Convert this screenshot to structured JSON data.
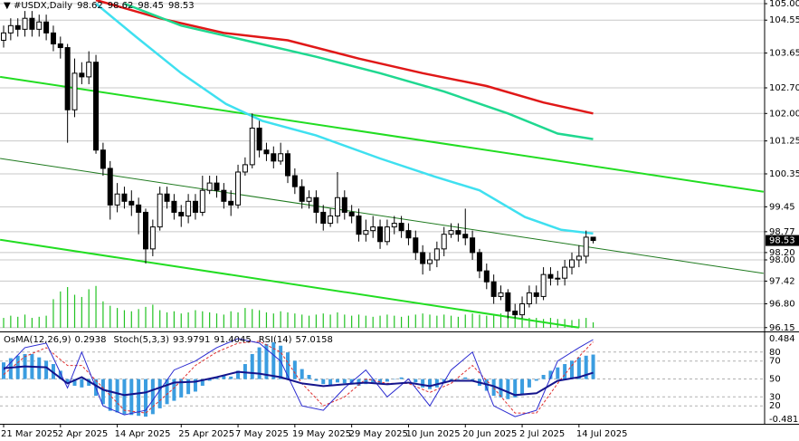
{
  "chart_data": [
    {
      "type": "candlestick",
      "symbol": "#USDX,Daily",
      "categories": [
        "21 Mar 2025",
        null,
        null,
        null,
        null,
        null,
        null,
        null,
        "2 Apr 2025",
        null,
        null,
        null,
        null,
        null,
        null,
        null,
        "14 Apr 2025",
        null,
        null,
        null,
        null,
        null,
        null,
        null,
        null,
        "25 Apr 2025",
        null,
        null,
        null,
        null,
        null,
        null,
        null,
        "7 May 2025",
        null,
        null,
        null,
        null,
        null,
        null,
        null,
        "19 May 2025",
        null,
        null,
        null,
        null,
        null,
        null,
        null,
        "29 May 2025",
        null,
        null,
        null,
        null,
        null,
        null,
        null,
        "10 Jun 2025",
        null,
        null,
        null,
        null,
        null,
        null,
        null,
        "20 Jun 2025",
        null,
        null,
        null,
        null,
        null,
        null,
        null,
        "2 Jul 2025",
        null,
        null,
        null,
        null,
        null,
        null,
        null,
        "14 Jul 2025",
        null,
        null
      ],
      "open": [
        104.0,
        104.2,
        104.4,
        104.3,
        104.6,
        104.3,
        104.5,
        104.2,
        103.9,
        103.8,
        102.1,
        103.1,
        103.0,
        103.4,
        101.0,
        100.5,
        99.5,
        99.8,
        99.6,
        99.5,
        99.3,
        98.3,
        98.9,
        99.8,
        99.6,
        99.3,
        99.2,
        99.6,
        99.3,
        99.9,
        100.1,
        99.9,
        99.6,
        99.5,
        100.4,
        100.6,
        101.6,
        101.0,
        100.9,
        100.7,
        100.9,
        100.3,
        100.0,
        99.6,
        99.7,
        99.3,
        99.0,
        99.2,
        99.7,
        99.3,
        99.2,
        98.7,
        98.8,
        98.9,
        98.5,
        98.9,
        99.0,
        98.8,
        98.6,
        98.2,
        97.9,
        98.0,
        98.3,
        98.7,
        98.8,
        98.7,
        98.6,
        98.2,
        97.7,
        97.4,
        97.0,
        97.1,
        96.6,
        96.5,
        96.8,
        97.1,
        97.0,
        97.6,
        97.5,
        97.5,
        97.8,
        98.0,
        98.1,
        98.62
      ],
      "high": [
        104.4,
        104.6,
        104.6,
        104.8,
        104.8,
        104.7,
        104.7,
        104.4,
        104.1,
        103.9,
        103.5,
        103.4,
        103.7,
        103.6,
        101.2,
        100.7,
        100.1,
        100.0,
        99.9,
        99.7,
        99.4,
        99.1,
        100.0,
        100.0,
        99.8,
        99.5,
        99.8,
        99.8,
        100.3,
        100.3,
        100.3,
        100.1,
        99.9,
        100.6,
        100.8,
        102.0,
        101.8,
        101.2,
        101.1,
        101.2,
        101.0,
        100.5,
        100.2,
        99.9,
        99.9,
        99.5,
        99.4,
        100.4,
        99.9,
        99.5,
        99.4,
        99.1,
        99.2,
        99.1,
        99.1,
        99.2,
        99.2,
        99.0,
        98.8,
        98.4,
        98.2,
        98.5,
        98.9,
        99.0,
        99.0,
        99.4,
        98.8,
        98.3,
        97.9,
        97.6,
        97.3,
        97.2,
        96.8,
        97.0,
        97.3,
        97.3,
        97.8,
        97.8,
        97.7,
        98.0,
        98.2,
        98.4,
        98.8,
        98.62
      ],
      "low": [
        103.8,
        104.0,
        104.1,
        104.1,
        104.1,
        104.1,
        104.0,
        103.7,
        103.5,
        101.2,
        101.9,
        102.8,
        102.8,
        100.9,
        100.3,
        99.1,
        99.3,
        99.4,
        99.2,
        98.7,
        97.9,
        98.1,
        98.8,
        99.4,
        99.1,
        98.9,
        99.0,
        99.1,
        99.2,
        99.8,
        99.7,
        99.4,
        99.2,
        99.4,
        100.3,
        100.5,
        100.8,
        100.7,
        100.5,
        100.6,
        100.1,
        99.8,
        99.4,
        99.4,
        99.0,
        98.8,
        98.9,
        99.0,
        99.1,
        99.0,
        98.5,
        98.5,
        98.6,
        98.3,
        98.4,
        98.7,
        98.6,
        98.4,
        98.0,
        97.6,
        97.7,
        97.8,
        98.1,
        98.6,
        98.5,
        98.4,
        98.0,
        97.5,
        97.2,
        96.8,
        96.9,
        96.4,
        96.4,
        96.4,
        96.7,
        96.8,
        96.9,
        97.3,
        97.3,
        97.3,
        97.6,
        97.8,
        97.9,
        98.45
      ],
      "close": [
        104.2,
        104.4,
        104.3,
        104.6,
        104.3,
        104.5,
        104.2,
        103.9,
        103.8,
        102.1,
        103.1,
        103.0,
        103.4,
        101.0,
        100.5,
        99.5,
        99.8,
        99.6,
        99.5,
        99.3,
        98.3,
        98.9,
        99.8,
        99.6,
        99.3,
        99.2,
        99.6,
        99.3,
        99.9,
        100.1,
        99.9,
        99.6,
        99.5,
        100.4,
        100.6,
        101.6,
        101.0,
        100.9,
        100.7,
        100.9,
        100.3,
        100.0,
        99.6,
        99.7,
        99.3,
        99.0,
        99.2,
        99.7,
        99.3,
        99.2,
        98.7,
        98.8,
        98.9,
        98.5,
        98.9,
        99.0,
        98.8,
        98.6,
        98.2,
        97.9,
        98.0,
        98.3,
        98.7,
        98.8,
        98.7,
        98.6,
        98.2,
        97.7,
        97.4,
        97.0,
        97.1,
        96.6,
        96.5,
        96.8,
        97.1,
        97.0,
        97.6,
        97.5,
        97.5,
        97.8,
        98.0,
        98.1,
        98.62,
        98.53
      ],
      "volume": [
        9000,
        11000,
        10000,
        12000,
        9000,
        10000,
        11000,
        26000,
        33000,
        37000,
        30000,
        28000,
        35000,
        38000,
        24000,
        20000,
        18000,
        16000,
        15000,
        17000,
        19000,
        21000,
        16000,
        14000,
        15000,
        13000,
        14000,
        16000,
        15000,
        14000,
        13000,
        12000,
        15000,
        14000,
        18000,
        17000,
        16000,
        14000,
        13000,
        15000,
        14000,
        13000,
        12000,
        11000,
        12000,
        13000,
        12000,
        14000,
        12000,
        11000,
        12000,
        11000,
        10000,
        11000,
        12000,
        11000,
        10000,
        11000,
        12000,
        13000,
        12000,
        11000,
        12000,
        11000,
        10000,
        12000,
        13000,
        12000,
        11000,
        12000,
        13000,
        12000,
        11000,
        10000,
        9000,
        9000,
        8000,
        9000,
        8000,
        8000,
        7000,
        8000,
        9000,
        5000
      ],
      "volume_lim": [
        0,
        300000
      ],
      "volume_color": "#22c322",
      "lines": [
        {
          "color": "#e01818",
          "x": [
            13,
            22,
            31,
            40,
            50,
            59,
            68,
            76,
            83
          ],
          "values": [
            105.1,
            104.6,
            104.2,
            104.0,
            103.5,
            103.1,
            102.75,
            102.3,
            102.0
          ]
        },
        {
          "color": "#1fd890",
          "x": [
            17,
            25,
            34,
            44,
            53,
            62,
            71,
            78,
            83
          ],
          "values": [
            105.0,
            104.4,
            104.0,
            103.55,
            103.1,
            102.6,
            102.0,
            101.45,
            101.3
          ]
        },
        {
          "color": "#3fe0f0",
          "x": [
            13,
            18.6,
            25,
            31.3,
            36.4,
            44,
            53,
            60.6,
            67,
            73.4,
            78.5,
            83
          ],
          "values": [
            105.0,
            104.1,
            103.1,
            102.26,
            101.8,
            101.4,
            100.77,
            100.28,
            99.9,
            99.17,
            98.82,
            98.72
          ]
        }
      ],
      "trendlines": [
        {
          "color": "#22dd22",
          "x": [
            -0.5,
            107
          ],
          "values": [
            103.0,
            99.86
          ]
        },
        {
          "color": "#1f7a1f",
          "x": [
            -0.5,
            107
          ],
          "values": [
            100.77,
            97.63
          ]
        },
        {
          "color": "#22dd22",
          "x": [
            -0.5,
            81
          ],
          "values": [
            98.55,
            96.15
          ]
        }
      ],
      "ylim": [
        96.07,
        105.1
      ],
      "yticks": [
        {
          "value": 105,
          "label": "105.00"
        },
        104.55,
        103.65,
        {
          "value": 102.7,
          "label": "102.70"
        },
        {
          "value": 102,
          "label": "102.00"
        },
        101.25,
        100.35,
        99.45,
        98.77,
        {
          "value": 98.2,
          "label": "98.20"
        },
        {
          "value": 98,
          "label": "98.00"
        },
        97.42,
        {
          "value": 96.8,
          "label": "96.80"
        },
        96.15
      ],
      "grid": true
    },
    {
      "type": "oscillator",
      "osma": {
        "label": "OsMA(12,26,9)",
        "color": "#3b9de0",
        "values": [
          0.2,
          0.25,
          0.28,
          0.3,
          0.3,
          0.26,
          0.22,
          0.18,
          0.1,
          -0.05,
          -0.08,
          -0.1,
          -0.08,
          -0.2,
          -0.3,
          -0.38,
          -0.4,
          -0.42,
          -0.43,
          -0.44,
          -0.45,
          -0.42,
          -0.35,
          -0.3,
          -0.26,
          -0.22,
          -0.18,
          -0.15,
          -0.08,
          -0.02,
          0.02,
          0.04,
          0.03,
          0.1,
          0.18,
          0.3,
          0.38,
          0.42,
          0.44,
          0.4,
          0.32,
          0.22,
          0.12,
          0.05,
          -0.02,
          -0.06,
          -0.08,
          -0.04,
          -0.05,
          -0.06,
          -0.08,
          -0.06,
          -0.04,
          -0.06,
          -0.03,
          0.0,
          0.02,
          0.0,
          -0.04,
          -0.1,
          -0.12,
          -0.1,
          -0.05,
          -0.02,
          0.0,
          0.02,
          -0.02,
          -0.08,
          -0.14,
          -0.2,
          -0.22,
          -0.24,
          -0.22,
          -0.18,
          -0.1,
          -0.02,
          0.05,
          0.1,
          0.14,
          0.18,
          0.22,
          0.26,
          0.28,
          0.2938
        ]
      },
      "stoch": {
        "label": "Stoch(5,3,3)",
        "color": "#2a2ad0",
        "signal_color": "#e03030",
        "x": [
          0,
          3,
          6,
          9,
          11,
          14,
          17,
          20,
          24,
          27,
          30,
          33,
          36,
          39,
          42,
          45,
          48,
          51,
          54,
          57,
          60,
          63,
          66,
          69,
          72,
          75,
          78,
          81,
          83
        ],
        "main": [
          60,
          85,
          90,
          40,
          80,
          20,
          10,
          15,
          60,
          70,
          85,
          95,
          90,
          70,
          20,
          15,
          40,
          60,
          30,
          50,
          20,
          60,
          80,
          20,
          8,
          15,
          70,
          85,
          93.9791
        ],
        "signal": [
          55,
          75,
          85,
          65,
          65,
          40,
          15,
          12,
          40,
          65,
          80,
          90,
          92,
          80,
          45,
          20,
          30,
          50,
          45,
          45,
          35,
          45,
          65,
          40,
          12,
          12,
          45,
          75,
          91.4045
        ]
      },
      "rsi": {
        "label": "RSI(14)",
        "color": "#14148c",
        "x": [
          0,
          3,
          6,
          9,
          11,
          14,
          17,
          20,
          24,
          27,
          30,
          33,
          36,
          39,
          42,
          45,
          48,
          51,
          54,
          57,
          60,
          63,
          66,
          69,
          72,
          75,
          78,
          81,
          83
        ],
        "values": [
          62,
          64,
          63,
          45,
          52,
          38,
          32,
          35,
          46,
          47,
          52,
          58,
          56,
          52,
          45,
          42,
          44,
          46,
          44,
          46,
          42,
          48,
          48,
          42,
          32,
          34,
          48,
          52,
          57.0158
        ]
      },
      "ylim": [
        0,
        100
      ],
      "yticks": [
        80,
        70,
        50,
        30,
        20
      ],
      "y2lim": [
        -0.4812,
        0.484
      ],
      "y2ticks": [
        0.484,
        -0.4812
      ]
    }
  ]
}
